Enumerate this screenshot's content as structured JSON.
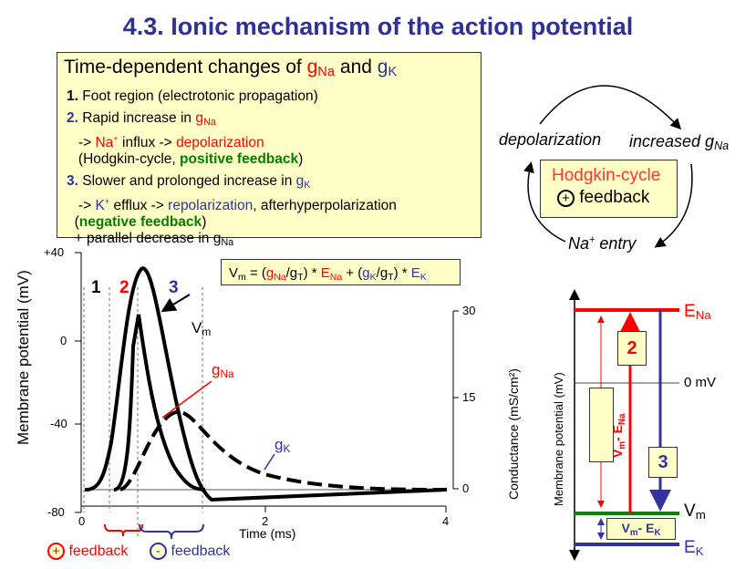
{
  "title": "4.3. Ionic mechanism of the action potential",
  "textbox": {
    "heading": "Time-dependent changes of",
    "gNa": "g",
    "Na": "Na",
    "and": "and",
    "gK": "g",
    "K": "K",
    "item1_num": "1.",
    "item1": "Foot region (electrotonic propagation)",
    "item2_num": "2.",
    "item2_a": "Rapid increase in",
    "item2_b": "->",
    "item2_na": "Na",
    "item2_c": "influx ->",
    "item2_depol": "depolarization",
    "item2_d": "(Hodgkin-cycle,",
    "item2_pos": "positive feedback",
    "item2_e": ")",
    "item3_num": "3.",
    "item3_a": "Slower and prolonged increase in",
    "item3_b": "->",
    "item3_k": "K",
    "item3_c": "efflux ->",
    "item3_repol": "repolarization",
    "item3_d": ", afterhyperpolarization",
    "item3_neg": "negative feedback",
    "item3_e": "+ parallel decrease in"
  },
  "cycle": {
    "depolarization": "depolarization",
    "increased": "increased g",
    "na_entry": "Na",
    "entry": "entry",
    "box_title": "Hodgkin-cycle",
    "feedback": "feedback",
    "plus": "+"
  },
  "chart": {
    "ylabel": "Membrane potential (mV)",
    "y2label": "Conductance (mS/cm²)",
    "xlabel": "Time (ms)",
    "yticks": [
      "+40",
      "0",
      "-40",
      "-80"
    ],
    "xticks": [
      "0",
      "2",
      "4"
    ],
    "y2ticks": [
      "30",
      "15",
      "0"
    ],
    "phases": [
      "1",
      "2",
      "3"
    ],
    "vm": "V",
    "m": "m",
    "equation": {
      "vm": "V",
      "m": "m",
      "eq": " = (",
      "g1": "g",
      "na": "Na",
      "slash": "/g",
      "t": "T",
      "mid": ") * ",
      "e1": "E",
      "plus": " + (",
      "g2": "g",
      "k": "K",
      "end": ") * ",
      "e2": "E"
    },
    "pos_feedback": "feedback",
    "neg_feedback": "feedback",
    "plus": "+",
    "minus": "-"
  },
  "potential": {
    "ylabel": "Membrane potential (mV)",
    "ena": "E",
    "na": "Na",
    "zero": "0 mV",
    "vm": "V",
    "m": "m",
    "ek": "E",
    "k": "K",
    "box2": "2",
    "box3": "3",
    "vm_ena": "V",
    "vm_ena_m": "m",
    "vm_ena_b": "- E",
    "vm_ek": "V",
    "vm_ek_m": "m",
    "vm_ek_b": "- E"
  }
}
